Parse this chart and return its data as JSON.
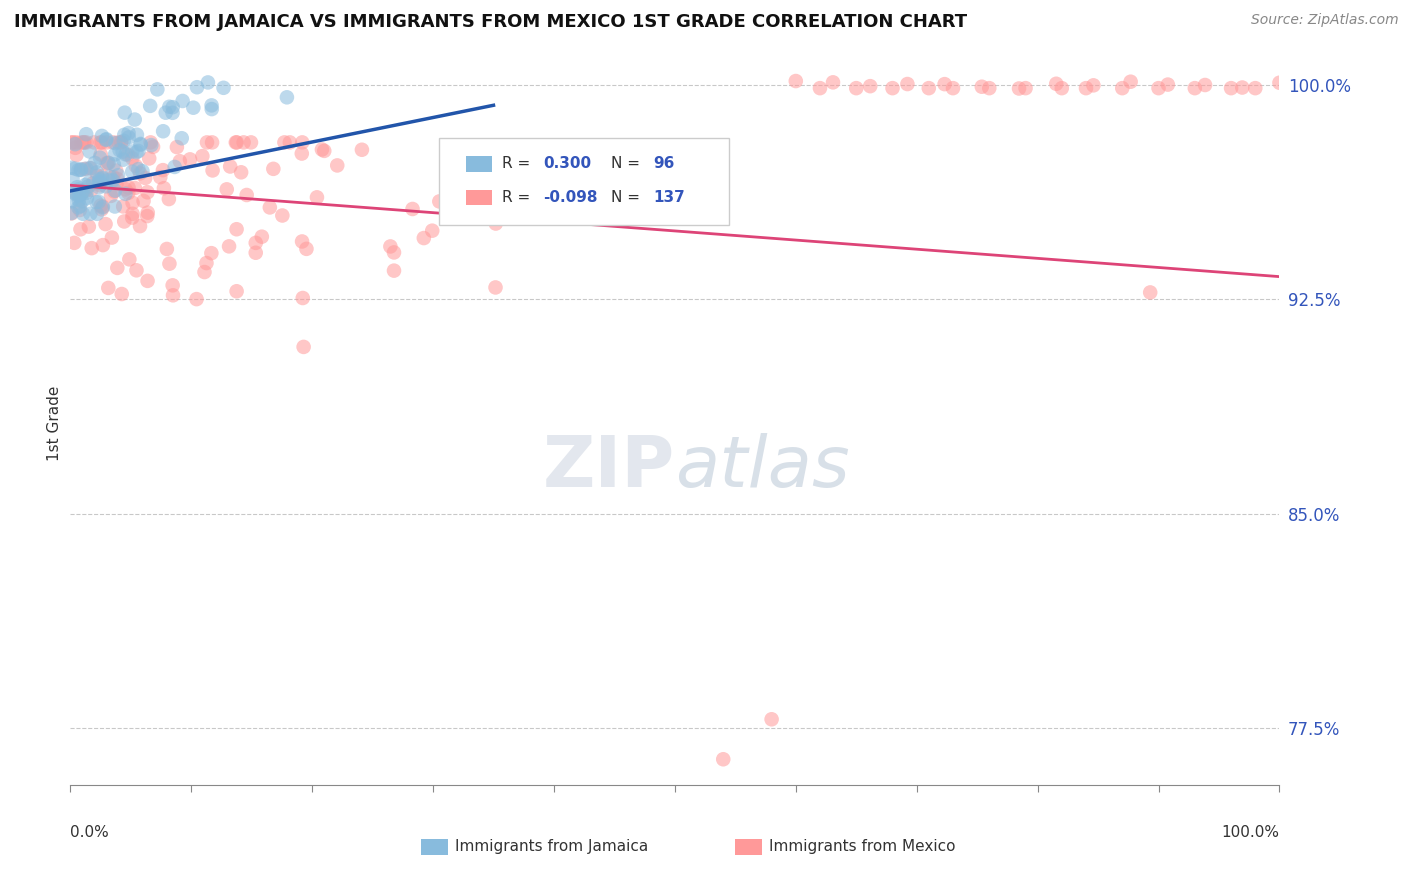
{
  "title": "IMMIGRANTS FROM JAMAICA VS IMMIGRANTS FROM MEXICO 1ST GRADE CORRELATION CHART",
  "source": "Source: ZipAtlas.com",
  "ylabel": "1st Grade",
  "ytick_labels": [
    "77.5%",
    "85.0%",
    "92.5%",
    "100.0%"
  ],
  "ytick_values": [
    0.775,
    0.85,
    0.925,
    1.0
  ],
  "N_jamaica": 96,
  "N_mexico": 137,
  "R_jamaica": 0.3,
  "R_mexico": -0.098,
  "color_jamaica": "#88BBDD",
  "color_mexico": "#FF9999",
  "line_color_jamaica": "#2255AA",
  "line_color_mexico": "#DD4477",
  "background_color": "#FFFFFF",
  "watermark_text": "ZIPatlas",
  "xlim": [
    0.0,
    1.0
  ],
  "ylim": [
    0.755,
    1.008
  ],
  "jam_line_x0": 0.0,
  "jam_line_x1": 0.35,
  "jam_line_y0": 0.963,
  "jam_line_y1": 0.993,
  "mex_line_x0": 0.0,
  "mex_line_x1": 1.0,
  "mex_line_y0": 0.965,
  "mex_line_y1": 0.933
}
